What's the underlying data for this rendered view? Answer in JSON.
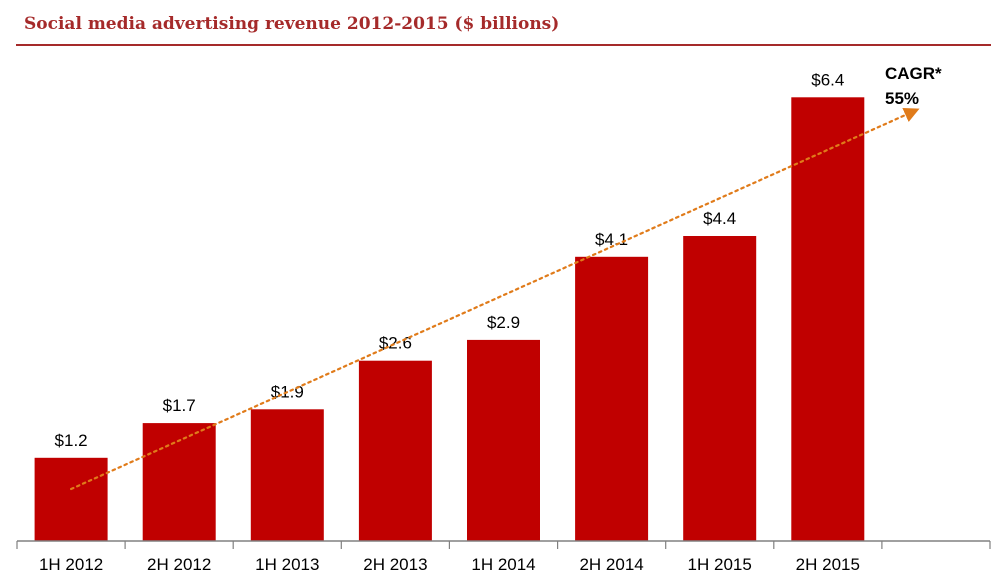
{
  "header": {
    "title": "Social media advertising revenue 2012-2015 ($ billions)"
  },
  "colors": {
    "title": "#a52a2a",
    "bar": "#c00000",
    "trend": "#e07b1a",
    "axis": "#808080"
  },
  "chart_data": {
    "type": "bar",
    "title": "Social media advertising revenue 2012-2015 ($ billions)",
    "xlabel": "",
    "ylabel": "",
    "categories": [
      "1H 2012",
      "2H 2012",
      "1H 2013",
      "2H 2013",
      "1H 2014",
      "2H 2014",
      "1H 2015",
      "2H 2015"
    ],
    "values": [
      1.2,
      1.7,
      1.9,
      2.6,
      2.9,
      4.1,
      4.4,
      6.4
    ],
    "value_labels": [
      "$1.2",
      "$1.7",
      "$1.9",
      "$2.6",
      "$2.9",
      "$4.1",
      "$4.4",
      "$6.4"
    ],
    "ylim": [
      0,
      7.14
    ],
    "grid": false,
    "legend": "none",
    "annotation": {
      "line1": "CAGR*",
      "line2": "55%"
    },
    "trend": {
      "style": "dotted-arrow",
      "from": {
        "category": "1H 2012",
        "value": 0.75
      },
      "to": {
        "category": "2H 2015",
        "value": 6.2
      }
    }
  }
}
